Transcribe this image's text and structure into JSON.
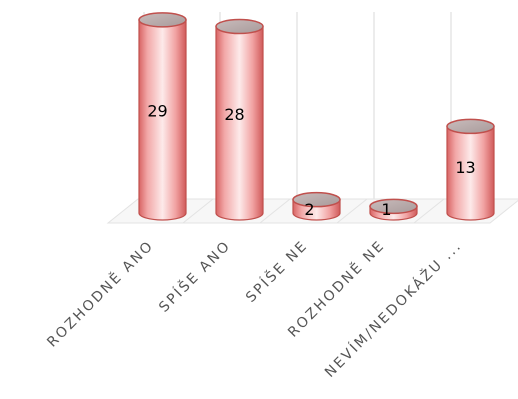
{
  "chart_data": {
    "type": "bar",
    "style": "3d-cylinder",
    "categories": [
      "ROZHODNĚ ANO",
      "SPÍŠE ANO",
      "SPÍŠE NE",
      "ROZHODNĚ NE",
      "NEVÍM/NEDOKÁŽU ..."
    ],
    "values": [
      29,
      28,
      2,
      1,
      13
    ],
    "data_labels": [
      "29",
      "28",
      "2",
      "1",
      "13"
    ],
    "ylim": [
      0,
      32
    ],
    "grid": true,
    "legend": "none",
    "title": "",
    "xlabel": "",
    "ylabel": "",
    "colors": {
      "bar_light": "#fde6e6",
      "bar_mid": "#f2a0a0",
      "bar_dark": "#d35a5a",
      "bar_edge": "#c0504d",
      "top_fill": "#b5a8a8",
      "grid": "#d9d9d9",
      "floor": "#e3e3e3",
      "label": "#555555"
    }
  }
}
